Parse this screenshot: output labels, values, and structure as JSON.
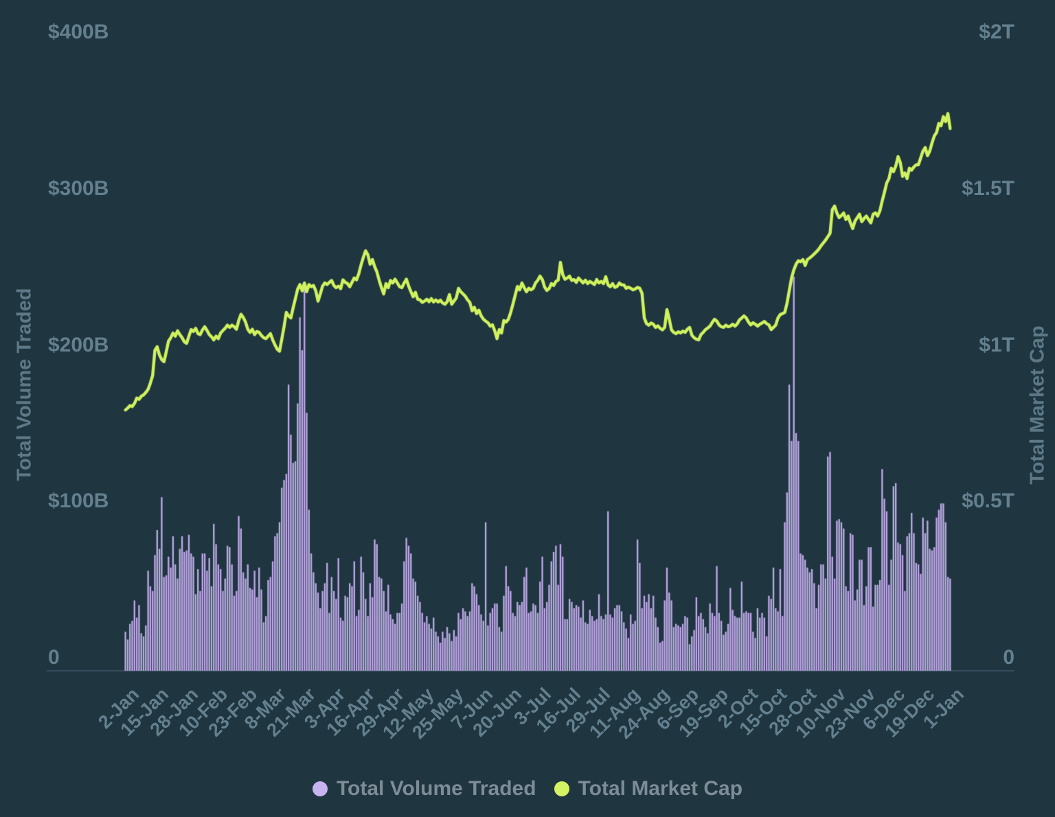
{
  "colors": {
    "background": "#1f3540",
    "bar": "#bdaae6",
    "line": "#cff25e",
    "tick_text": "#64808e",
    "axis_title_text": "#5d7886",
    "legend_text": "#7d8c96",
    "baseline": "#37525d",
    "legend_dot_volume": "#c7b3ef",
    "legend_dot_marketcap": "#d4f263"
  },
  "chart_data": {
    "type": "bar+line",
    "cadence": "daily",
    "x_start": "2-Jan",
    "x_end": "1-Jan",
    "x_tick_every_days": 13,
    "x_tick_labels": [
      "2-Jan",
      "15-Jan",
      "28-Jan",
      "10-Feb",
      "23-Feb",
      "8-Mar",
      "21-Mar",
      "3-Apr",
      "16-Apr",
      "29-Apr",
      "12-May",
      "25-May",
      "7-Jun",
      "20-Jun",
      "3-Jul",
      "16-Jul",
      "29-Jul",
      "11-Aug",
      "24-Aug",
      "6-Sep",
      "19-Sep",
      "2-Oct",
      "15-Oct",
      "28-Oct",
      "10-Nov",
      "23-Nov",
      "6-Dec",
      "19-Dec",
      "1-Jan"
    ],
    "left_axis": {
      "title": "Total Volume Traded",
      "unit": "$B",
      "min": 0,
      "max": 400,
      "tick_labels": [
        "$400B",
        "$300B",
        "$200B",
        "$100B",
        "0"
      ],
      "tick_values": [
        400,
        300,
        200,
        100,
        0
      ]
    },
    "right_axis": {
      "title": "Total Market Cap",
      "unit": "$T",
      "min": 0,
      "max": 2,
      "tick_labels": [
        "$2T",
        "$1.5T",
        "$1T",
        "$0.5T",
        "0"
      ],
      "tick_values": [
        2,
        1.5,
        1,
        0.5,
        0
      ]
    },
    "legend_position": "bottom-center",
    "grid": false,
    "series": [
      {
        "name": "Total Volume Traded",
        "type": "bar",
        "axis": "left",
        "unit": "$B",
        "values": [
          25,
          20,
          30,
          32,
          45,
          34,
          42,
          24,
          22,
          29,
          64,
          54,
          51,
          74,
          90,
          78,
          111,
          60,
          61,
          73,
          66,
          86,
          68,
          59,
          78,
          86,
          76,
          77,
          87,
          75,
          73,
          49,
          65,
          51,
          75,
          75,
          64,
          72,
          54,
          94,
          81,
          68,
          65,
          51,
          59,
          80,
          79,
          68,
          48,
          51,
          99,
          91,
          63,
          59,
          68,
          53,
          52,
          64,
          47,
          66,
          52,
          31,
          35,
          58,
          60,
          70,
          86,
          88,
          95,
          117,
          122,
          126,
          183,
          151,
          133,
          134,
          171,
          226,
          205,
          245,
          165,
          103,
          75,
          63,
          56,
          50,
          40,
          51,
          56,
          69,
          37,
          60,
          51,
          46,
          72,
          34,
          32,
          48,
          47,
          56,
          54,
          70,
          35,
          39,
          73,
          63,
          46,
          35,
          56,
          47,
          84,
          81,
          60,
          59,
          51,
          38,
          55,
          36,
          33,
          30,
          37,
          37,
          43,
          70,
          85,
          80,
          75,
          59,
          57,
          48,
          44,
          37,
          31,
          35,
          30,
          27,
          34,
          25,
          22,
          18,
          25,
          21,
          28,
          24,
          19,
          26,
          22,
          37,
          33,
          40,
          38,
          35,
          38,
          56,
          54,
          49,
          42,
          36,
          32,
          95,
          29,
          37,
          40,
          43,
          43,
          28,
          25,
          48,
          67,
          54,
          51,
          37,
          35,
          44,
          42,
          44,
          60,
          66,
          37,
          38,
          43,
          42,
          37,
          57,
          73,
          40,
          44,
          55,
          70,
          76,
          80,
          55,
          81,
          73,
          33,
          33,
          46,
          44,
          40,
          42,
          41,
          34,
          45,
          31,
          30,
          39,
          35,
          32,
          33,
          49,
          35,
          33,
          36,
          102,
          36,
          34,
          40,
          42,
          42,
          38,
          31,
          27,
          21,
          36,
          30,
          32,
          84,
          69,
          40,
          48,
          44,
          49,
          40,
          48,
          34,
          28,
          18,
          19,
          45,
          66,
          50,
          45,
          28,
          30,
          29,
          28,
          30,
          35,
          34,
          17,
          22,
          26,
          47,
          35,
          37,
          33,
          28,
          24,
          43,
          37,
          35,
          67,
          37,
          32,
          23,
          25,
          30,
          53,
          39,
          35,
          34,
          34,
          57,
          37,
          38,
          37,
          37,
          25,
          21,
          40,
          34,
          37,
          34,
          22,
          48,
          46,
          66,
          40,
          38,
          65,
          35,
          95,
          114,
          183,
          147,
          252,
          152,
          147,
          75,
          74,
          71,
          66,
          63,
          65,
          56,
          40,
          55,
          68,
          68,
          59,
          137,
          140,
          73,
          59,
          96,
          97,
          95,
          91,
          54,
          51,
          88,
          87,
          45,
          52,
          71,
          71,
          42,
          54,
          79,
          79,
          41,
          55,
          55,
          58,
          129,
          110,
          102,
          55,
          71,
          118,
          120,
          82,
          81,
          74,
          51,
          86,
          88,
          101,
          88,
          69,
          68,
          62,
          98,
          88,
          96,
          78,
          77,
          79,
          98,
          103,
          107,
          107,
          95,
          60,
          59
        ]
      },
      {
        "name": "Total Market Cap",
        "type": "line",
        "axis": "right",
        "unit": "$T",
        "values": [
          0.834,
          0.84,
          0.848,
          0.845,
          0.855,
          0.872,
          0.868,
          0.878,
          0.882,
          0.89,
          0.9,
          0.92,
          0.944,
          1.025,
          1.036,
          1.01,
          0.995,
          0.988,
          1.02,
          1.054,
          1.065,
          1.08,
          1.07,
          1.087,
          1.075,
          1.065,
          1.052,
          1.047,
          1.07,
          1.091,
          1.085,
          1.095,
          1.078,
          1.075,
          1.09,
          1.1,
          1.088,
          1.075,
          1.068,
          1.058,
          1.07,
          1.062,
          1.08,
          1.088,
          1.095,
          1.105,
          1.098,
          1.105,
          1.1,
          1.092,
          1.12,
          1.14,
          1.13,
          1.115,
          1.092,
          1.082,
          1.092,
          1.075,
          1.085,
          1.082,
          1.072,
          1.065,
          1.062,
          1.07,
          1.078,
          1.058,
          1.042,
          1.028,
          1.022,
          1.06,
          1.1,
          1.146,
          1.135,
          1.128,
          1.16,
          1.19,
          1.22,
          1.235,
          1.215,
          1.24,
          1.212,
          1.235,
          1.228,
          1.232,
          1.215,
          1.182,
          1.205,
          1.23,
          1.24,
          1.235,
          1.242,
          1.248,
          1.232,
          1.225,
          1.23,
          1.222,
          1.25,
          1.242,
          1.238,
          1.228,
          1.242,
          1.256,
          1.25,
          1.27,
          1.298,
          1.322,
          1.343,
          1.33,
          1.3,
          1.315,
          1.292,
          1.275,
          1.248,
          1.225,
          1.205,
          1.238,
          1.225,
          1.248,
          1.24,
          1.252,
          1.24,
          1.228,
          1.225,
          1.24,
          1.252,
          1.23,
          1.212,
          1.196,
          1.21,
          1.188,
          1.186,
          1.178,
          1.182,
          1.188,
          1.18,
          1.19,
          1.179,
          1.186,
          1.179,
          1.185,
          1.176,
          1.172,
          1.18,
          1.203,
          1.172,
          1.182,
          1.192,
          1.223,
          1.212,
          1.205,
          1.198,
          1.186,
          1.178,
          1.151,
          1.162,
          1.142,
          1.153,
          1.135,
          1.124,
          1.118,
          1.113,
          1.102,
          1.106,
          1.087,
          1.062,
          1.091,
          1.08,
          1.12,
          1.115,
          1.124,
          1.145,
          1.172,
          1.2,
          1.229,
          1.218,
          1.24,
          1.225,
          1.212,
          1.223,
          1.218,
          1.223,
          1.24,
          1.249,
          1.262,
          1.251,
          1.227,
          1.216,
          1.222,
          1.238,
          1.232,
          1.245,
          1.249,
          1.306,
          1.267,
          1.252,
          1.256,
          1.262,
          1.248,
          1.251,
          1.242,
          1.256,
          1.248,
          1.24,
          1.249,
          1.238,
          1.245,
          1.24,
          1.235,
          1.251,
          1.24,
          1.245,
          1.238,
          1.26,
          1.234,
          1.228,
          1.238,
          1.226,
          1.229,
          1.24,
          1.234,
          1.234,
          1.223,
          1.227,
          1.223,
          1.218,
          1.221,
          1.226,
          1.223,
          1.207,
          1.128,
          1.11,
          1.105,
          1.112,
          1.108,
          1.098,
          1.103,
          1.095,
          1.09,
          1.098,
          1.155,
          1.125,
          1.09,
          1.082,
          1.078,
          1.084,
          1.08,
          1.086,
          1.082,
          1.092,
          1.098,
          1.073,
          1.065,
          1.06,
          1.058,
          1.075,
          1.082,
          1.091,
          1.096,
          1.102,
          1.114,
          1.124,
          1.118,
          1.106,
          1.1,
          1.098,
          1.105,
          1.1,
          1.102,
          1.108,
          1.102,
          1.109,
          1.122,
          1.128,
          1.135,
          1.128,
          1.115,
          1.106,
          1.113,
          1.108,
          1.102,
          1.108,
          1.112,
          1.117,
          1.11,
          1.106,
          1.091,
          1.098,
          1.105,
          1.128,
          1.139,
          1.142,
          1.146,
          1.175,
          1.216,
          1.256,
          1.282,
          1.3,
          1.311,
          1.308,
          1.315,
          1.296,
          1.315,
          1.32,
          1.326,
          1.333,
          1.34,
          1.348,
          1.359,
          1.368,
          1.377,
          1.388,
          1.399,
          1.475,
          1.486,
          1.464,
          1.449,
          1.456,
          1.464,
          1.443,
          1.454,
          1.432,
          1.414,
          1.438,
          1.449,
          1.46,
          1.436,
          1.446,
          1.454,
          1.443,
          1.432,
          1.46,
          1.464,
          1.454,
          1.471,
          1.502,
          1.53,
          1.56,
          1.574,
          1.607,
          1.596,
          1.614,
          1.644,
          1.625,
          1.581,
          1.592,
          1.574,
          1.607,
          1.601,
          1.611,
          1.618,
          1.618,
          1.64,
          1.662,
          1.673,
          1.647,
          1.662,
          1.688,
          1.71,
          1.721,
          1.75,
          1.743,
          1.772,
          1.756,
          1.782,
          1.734
        ]
      }
    ],
    "legend": [
      {
        "label": "Total Volume Traded",
        "color": "#c7b3ef"
      },
      {
        "label": "Total Market Cap",
        "color": "#d4f263"
      }
    ]
  }
}
